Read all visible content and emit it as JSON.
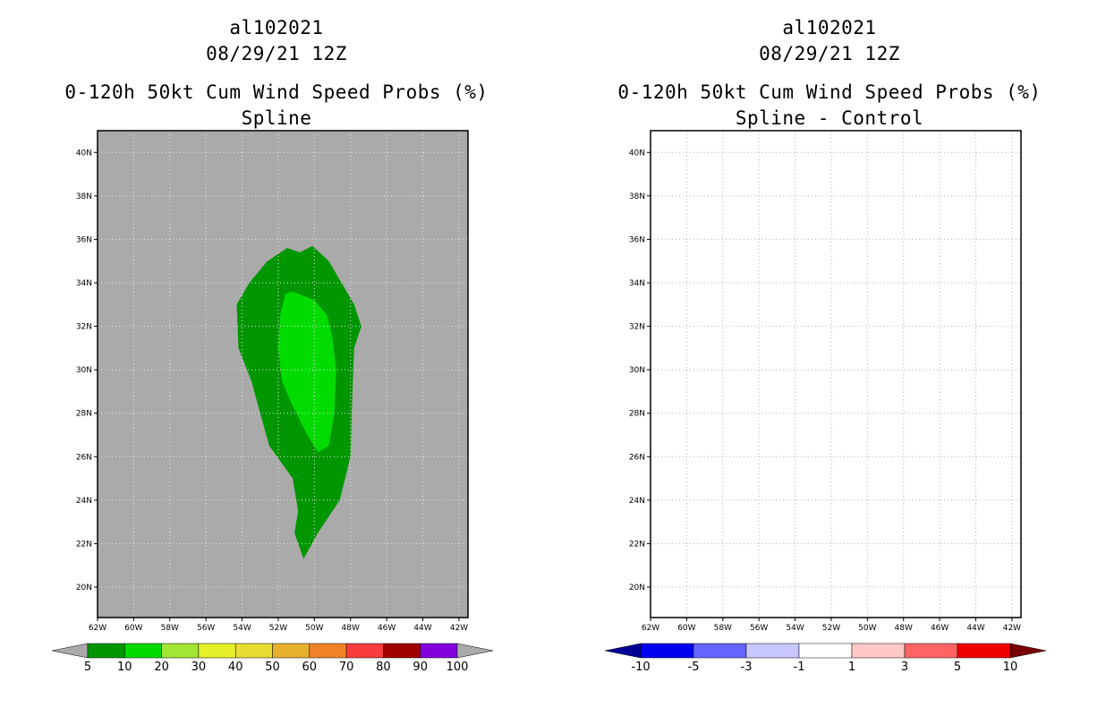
{
  "panels": [
    {
      "storm_id": "al102021",
      "datetime": "08/29/21 12Z",
      "product": "0-120h 50kt Cum Wind Speed Probs (%)",
      "method": "Spline",
      "background_color": "#aaaaaa",
      "chart_data": {
        "type": "heatmap",
        "title": "0-120h 50kt Cum Wind Speed Probs (%)",
        "subtitle": "Spline",
        "x_ticks": [
          "62W",
          "60W",
          "58W",
          "56W",
          "54W",
          "52W",
          "50W",
          "48W",
          "46W",
          "44W",
          "42W"
        ],
        "y_ticks": [
          "20N",
          "22N",
          "24N",
          "26N",
          "28N",
          "30N",
          "32N",
          "34N",
          "36N",
          "38N",
          "40N"
        ],
        "xlim": [
          -62,
          -41.5
        ],
        "ylim": [
          18.6,
          41
        ],
        "grid": true,
        "contours": [
          {
            "level": "5-10%",
            "color": "#009600",
            "outline": [
              [
                -50.1,
                35.7
              ],
              [
                -49.2,
                35.0
              ],
              [
                -47.8,
                33.0
              ],
              [
                -47.4,
                32.0
              ],
              [
                -47.8,
                31.0
              ],
              [
                -47.9,
                29.0
              ],
              [
                -48.0,
                26.0
              ],
              [
                -48.6,
                24.0
              ],
              [
                -49.8,
                22.5
              ],
              [
                -50.6,
                21.3
              ],
              [
                -51.1,
                22.5
              ],
              [
                -50.9,
                23.5
              ],
              [
                -51.2,
                25.0
              ],
              [
                -52.5,
                26.5
              ],
              [
                -53.0,
                28.0
              ],
              [
                -53.5,
                29.5
              ],
              [
                -54.2,
                31.0
              ],
              [
                -54.3,
                33.0
              ],
              [
                -53.6,
                34.0
              ],
              [
                -52.6,
                35.0
              ],
              [
                -51.5,
                35.6
              ],
              [
                -50.8,
                35.4
              ]
            ]
          },
          {
            "level": "10-20%",
            "color": "#00dc00",
            "outline": [
              [
                -51.2,
                33.6
              ],
              [
                -50.0,
                33.2
              ],
              [
                -49.3,
                32.5
              ],
              [
                -49.0,
                31.5
              ],
              [
                -48.8,
                30.0
              ],
              [
                -48.9,
                28.0
              ],
              [
                -49.2,
                26.5
              ],
              [
                -49.8,
                26.2
              ],
              [
                -50.4,
                27.0
              ],
              [
                -51.3,
                28.5
              ],
              [
                -51.8,
                29.5
              ],
              [
                -52.0,
                31.0
              ],
              [
                -51.9,
                32.5
              ],
              [
                -51.6,
                33.5
              ]
            ]
          }
        ]
      },
      "colorbar": {
        "labels": [
          "5",
          "10",
          "20",
          "30",
          "40",
          "50",
          "60",
          "70",
          "80",
          "90",
          "100"
        ],
        "colors": [
          "#009600",
          "#00dc00",
          "#a0e632",
          "#e6f028",
          "#e6dc32",
          "#e6af2d",
          "#f08228",
          "#fa3c3c",
          "#a00000",
          "#8200dc"
        ],
        "under_color": "#aaaaaa",
        "over_color": "#aaaaaa"
      }
    },
    {
      "storm_id": "al102021",
      "datetime": "08/29/21 12Z",
      "product": "0-120h 50kt Cum Wind Speed Probs (%)",
      "method": "Spline - Control",
      "background_color": "#ffffff",
      "chart_data": {
        "type": "heatmap",
        "title": "0-120h 50kt Cum Wind Speed Probs (%)",
        "subtitle": "Spline - Control",
        "x_ticks": [
          "62W",
          "60W",
          "58W",
          "56W",
          "54W",
          "52W",
          "50W",
          "48W",
          "46W",
          "44W",
          "42W"
        ],
        "y_ticks": [
          "20N",
          "22N",
          "24N",
          "26N",
          "28N",
          "30N",
          "32N",
          "34N",
          "36N",
          "38N",
          "40N"
        ],
        "xlim": [
          -62,
          -41.5
        ],
        "ylim": [
          18.6,
          41
        ],
        "grid": true,
        "contours": []
      },
      "colorbar": {
        "labels": [
          "-10",
          "-5",
          "-3",
          "-1",
          "1",
          "3",
          "5",
          "10"
        ],
        "colors": [
          "#0000f0",
          "#6464ff",
          "#c8c8ff",
          "#ffffff",
          "#ffc8c8",
          "#ff6464",
          "#f00000"
        ],
        "under_color": "#000096",
        "over_color": "#780000"
      }
    }
  ]
}
